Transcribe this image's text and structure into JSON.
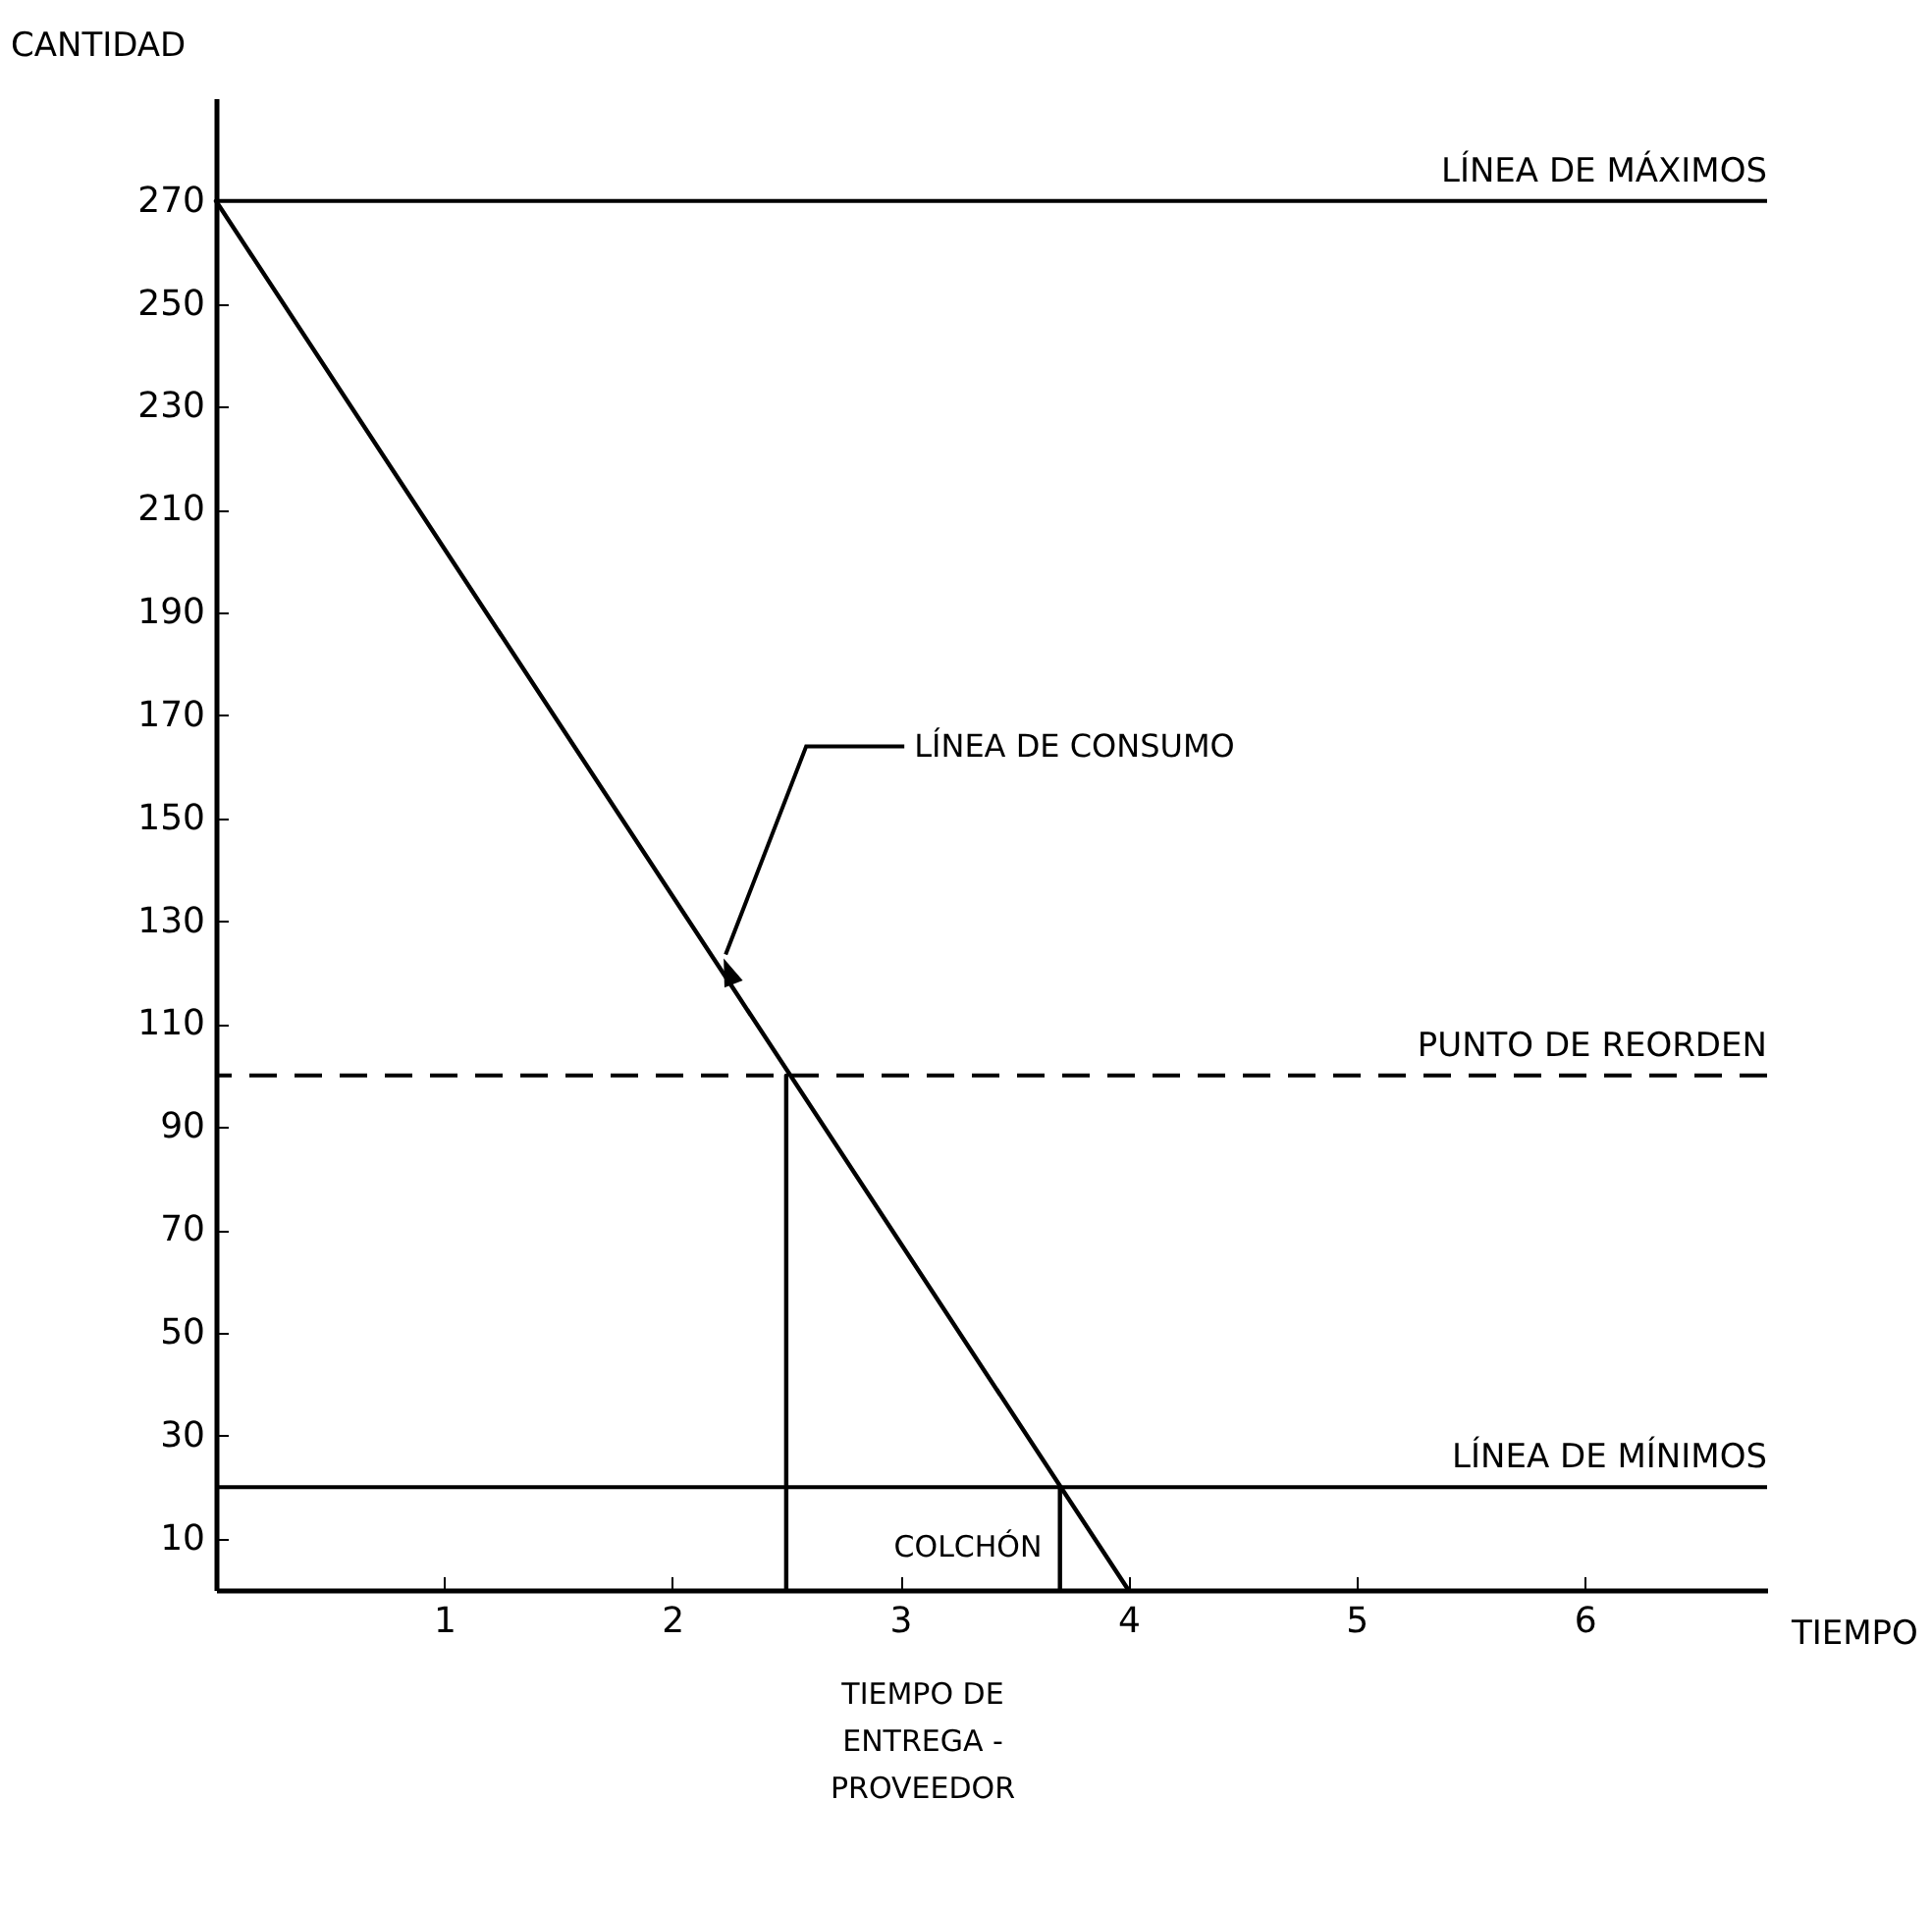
{
  "chart_data": {
    "type": "line",
    "xlabel": "TIEMPO",
    "ylabel": "CANTIDAD",
    "xlim": [
      0,
      6.8
    ],
    "ylim": [
      0,
      290
    ],
    "xticks": [
      1,
      2,
      3,
      4,
      5,
      6
    ],
    "yticks": [
      10,
      30,
      50,
      70,
      90,
      110,
      130,
      150,
      170,
      190,
      210,
      230,
      250,
      270
    ],
    "series": [
      {
        "color": "#000000",
        "x": [
          0,
          4
        ],
        "values": [
          270,
          0
        ]
      },
      {
        "color": "#000000",
        "x": [
          2.5,
          2.5
        ],
        "values": [
          100,
          0
        ]
      },
      {
        "color": "#000000",
        "x": [
          3.7,
          3.7
        ],
        "values": [
          20,
          0
        ]
      }
    ],
    "ref_lines": [
      {
        "axis": "y",
        "value": 270,
        "label": "LÍNEA DE MÁXIMOS",
        "color": "#000000",
        "line_style": "solid"
      },
      {
        "axis": "y",
        "value": 100,
        "label": "PUNTO DE REORDEN",
        "color": "#000000",
        "line_style": "dashed"
      },
      {
        "axis": "y",
        "value": 20,
        "label": "LÍNEA DE MÍNIMOS",
        "color": "#000000",
        "line_style": "solid"
      }
    ],
    "annotations": [
      {
        "text": "LÍNEA DE CONSUMO",
        "x": 2.2,
        "y": 122
      },
      "COLCHÓN",
      "TIEMPO DE ENTREGA - PROVEEDOR"
    ],
    "grid": false
  }
}
